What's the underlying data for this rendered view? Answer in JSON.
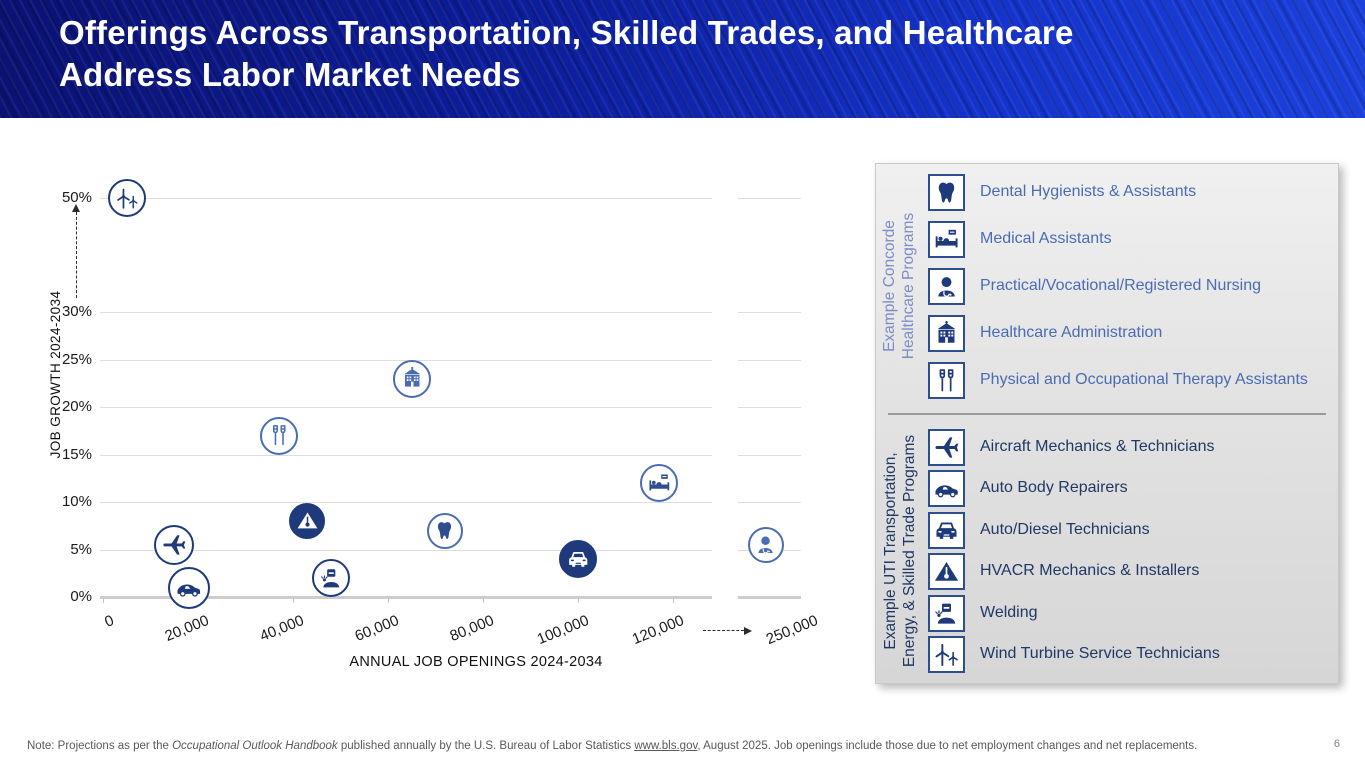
{
  "slide": {
    "title": "Offerings Across Transportation, Skilled Trades, and Healthcare Address Labor Market Needs",
    "page_number": "6"
  },
  "footer": {
    "prefix": "Note: Projections as per the ",
    "italic": "Occupational Outlook Handbook",
    "middle": " published annually by the U.S. Bureau of Labor Statistics ",
    "link": "www.bls.gov",
    "suffix": ", August 2025. Job openings include those due to net employment changes and net replacements."
  },
  "chart_data": {
    "type": "scatter",
    "title": "",
    "xlabel": "ANNUAL JOB OPENINGS 2024-2034",
    "ylabel": "JOB GROWTH 2024-2034",
    "x_axis_break": "axis broken between 120,000 and 250,000 (dashed arrow)",
    "y_axis_break": "axis broken between 30% and 50% (dashed arrow)",
    "grid": true,
    "x_ticks": [
      {
        "value": 0,
        "label": "0"
      },
      {
        "value": 20000,
        "label": "20,000"
      },
      {
        "value": 40000,
        "label": "40,000"
      },
      {
        "value": 60000,
        "label": "60,000"
      },
      {
        "value": 80000,
        "label": "80,000"
      },
      {
        "value": 100000,
        "label": "100,000"
      },
      {
        "value": 120000,
        "label": "120,000"
      },
      {
        "value": 250000,
        "label": "250,000"
      }
    ],
    "y_ticks": [
      {
        "value": 0,
        "label": "0%"
      },
      {
        "value": 5,
        "label": "5%"
      },
      {
        "value": 10,
        "label": "10%"
      },
      {
        "value": 15,
        "label": "15%"
      },
      {
        "value": 20,
        "label": "20%"
      },
      {
        "value": 25,
        "label": "25%"
      },
      {
        "value": 30,
        "label": "30%"
      },
      {
        "value": 50,
        "label": "50%"
      }
    ],
    "points": [
      {
        "label": "Wind Turbine Service Technicians",
        "icon": "wind-turbine",
        "openings": 5000,
        "growth": 50,
        "style": "outline-dark"
      },
      {
        "label": "Healthcare Administration",
        "icon": "hospital",
        "openings": 65000,
        "growth": 23,
        "style": "outline-medium"
      },
      {
        "label": "Physical and Occupational Therapy Assistants",
        "icon": "crutches",
        "openings": 37000,
        "growth": 17,
        "style": "outline-medium"
      },
      {
        "label": "Medical Assistants",
        "icon": "medical-bed",
        "openings": 117000,
        "growth": 12,
        "style": "outline-mixed"
      },
      {
        "label": "HVACR Mechanics & Installers",
        "icon": "hvacr",
        "openings": 43000,
        "growth": 8,
        "style": "filled"
      },
      {
        "label": "Dental Hygienists & Assistants",
        "icon": "tooth",
        "openings": 72000,
        "growth": 7,
        "style": "outline-mixed"
      },
      {
        "label": "Aircraft Mechanics & Technicians",
        "icon": "aircraft",
        "openings": 15000,
        "growth": 5.5,
        "style": "outline-dark"
      },
      {
        "label": "Practical/Vocational/Registered Nursing",
        "icon": "nurse",
        "openings": 250000,
        "growth": 5.5,
        "style": "outline-medium"
      },
      {
        "label": "Auto/Diesel Technicians",
        "icon": "auto-front",
        "openings": 100000,
        "growth": 4,
        "style": "filled"
      },
      {
        "label": "Welding",
        "icon": "welder",
        "openings": 48000,
        "growth": 2,
        "style": "outline-dark"
      },
      {
        "label": "Auto Body Repairers",
        "icon": "auto-side",
        "openings": 18000,
        "growth": 1,
        "style": "outline-dark"
      }
    ]
  },
  "legend": {
    "healthcare": {
      "side_label_line1": "Example Concorde",
      "side_label_line2": "Healthcare Programs",
      "items": [
        {
          "icon": "tooth",
          "label": "Dental Hygienists & Assistants"
        },
        {
          "icon": "medical-bed",
          "label": "Medical Assistants"
        },
        {
          "icon": "nurse",
          "label": "Practical/Vocational/Registered Nursing"
        },
        {
          "icon": "hospital",
          "label": "Healthcare Administration"
        },
        {
          "icon": "crutches",
          "label": "Physical and Occupational Therapy Assistants"
        }
      ]
    },
    "uti": {
      "side_label_line1": "Example UTI Transportation,",
      "side_label_line2": "Energy, & Skilled Trade Programs",
      "items": [
        {
          "icon": "aircraft",
          "label": "Aircraft Mechanics & Technicians"
        },
        {
          "icon": "auto-side",
          "label": "Auto Body Repairers"
        },
        {
          "icon": "auto-front",
          "label": "Auto/Diesel Technicians"
        },
        {
          "icon": "hvacr",
          "label": "HVACR Mechanics & Installers"
        },
        {
          "icon": "welder",
          "label": "Welding"
        },
        {
          "icon": "wind-turbine",
          "label": "Wind Turbine Service Technicians"
        }
      ]
    }
  },
  "colors": {
    "navy": "#1e3a7a",
    "medium_blue": "#4a6cb3",
    "icon_box_border": "#2e4f8f",
    "healthcare_label_text": "#4a6cb3",
    "uti_label_text": "#1f3864",
    "healthcare_side_label": "#7b8cc7",
    "gridline": "#dedede",
    "axis_line": "#cdcdcd",
    "header_dark": "#0a1272",
    "header_bright": "#1b41dc",
    "footer_gray": "#595959"
  }
}
